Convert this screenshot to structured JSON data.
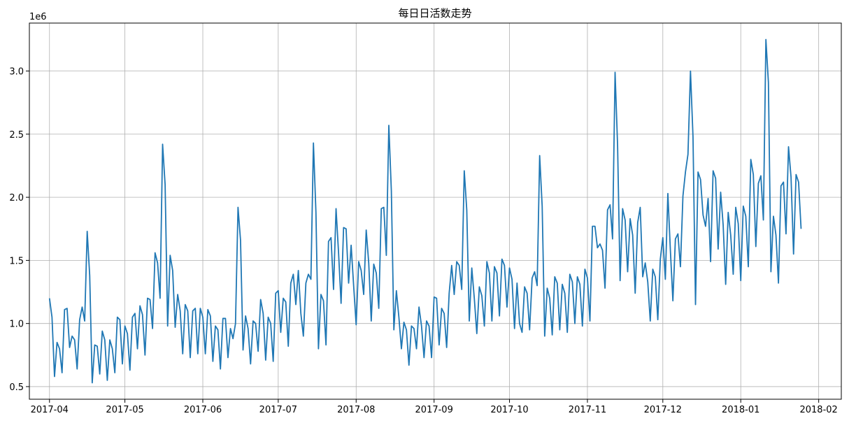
{
  "chart_data": {
    "type": "line",
    "title": "每日日活数走势",
    "xlabel": "",
    "ylabel": "",
    "y_offset_text": "1e6",
    "xlim": [
      "2017-03-24",
      "2018-02-10"
    ],
    "ylim": [
      0.4,
      3.38
    ],
    "grid": true,
    "x_start_date": "2017-04-01",
    "x_tick_labels": [
      "2017-04",
      "2017-05",
      "2017-06",
      "2017-07",
      "2017-08",
      "2017-09",
      "2017-10",
      "2017-11",
      "2017-12",
      "2018-01",
      "2018-02"
    ],
    "x_tick_dates": [
      "2017-04-01",
      "2017-05-01",
      "2017-06-01",
      "2017-07-01",
      "2017-08-01",
      "2017-09-01",
      "2017-10-01",
      "2017-11-01",
      "2017-12-01",
      "2018-01-01",
      "2018-02-01"
    ],
    "y_tick_labels": [
      "0.5",
      "1.0",
      "1.5",
      "2.0",
      "2.5",
      "3.0"
    ],
    "y_tick_values": [
      0.5,
      1.0,
      1.5,
      2.0,
      2.5,
      3.0
    ],
    "line_color": "#1f77b4",
    "series": [
      {
        "name": "",
        "values": [
          1.2,
          1.05,
          0.58,
          0.85,
          0.8,
          0.61,
          1.11,
          1.12,
          0.81,
          0.9,
          0.87,
          0.64,
          1.03,
          1.13,
          1.02,
          1.73,
          1.38,
          0.53,
          0.83,
          0.82,
          0.6,
          0.94,
          0.87,
          0.55,
          0.87,
          0.8,
          0.61,
          1.05,
          1.03,
          0.68,
          0.98,
          0.92,
          0.63,
          1.05,
          1.08,
          0.8,
          1.14,
          1.07,
          0.75,
          1.2,
          1.19,
          0.96,
          1.56,
          1.48,
          1.2,
          2.42,
          2.1,
          0.98,
          1.54,
          1.42,
          0.97,
          1.23,
          1.1,
          0.76,
          1.15,
          1.1,
          0.73,
          1.1,
          1.12,
          0.76,
          1.12,
          1.05,
          0.76,
          1.11,
          1.06,
          0.7,
          0.98,
          0.95,
          0.64,
          1.04,
          1.04,
          0.73,
          0.96,
          0.88,
          1.0,
          1.92,
          1.66,
          0.79,
          1.06,
          0.96,
          0.68,
          1.02,
          1.0,
          0.78,
          1.19,
          1.08,
          0.71,
          1.05,
          1.0,
          0.7,
          1.24,
          1.26,
          0.93,
          1.2,
          1.17,
          0.82,
          1.32,
          1.39,
          1.15,
          1.42,
          1.08,
          0.9,
          1.32,
          1.39,
          1.35,
          2.43,
          1.88,
          0.8,
          1.23,
          1.18,
          0.83,
          1.65,
          1.68,
          1.27,
          1.91,
          1.56,
          1.16,
          1.76,
          1.75,
          1.32,
          1.62,
          1.3,
          0.99,
          1.49,
          1.42,
          1.23,
          1.74,
          1.48,
          1.02,
          1.47,
          1.4,
          1.12,
          1.91,
          1.92,
          1.54,
          2.57,
          2.05,
          0.95,
          1.26,
          1.05,
          0.8,
          1.01,
          0.95,
          0.67,
          0.98,
          0.96,
          0.8,
          1.13,
          0.98,
          0.73,
          1.02,
          0.98,
          0.73,
          1.21,
          1.2,
          0.83,
          1.12,
          1.08,
          0.81,
          1.24,
          1.46,
          1.23,
          1.49,
          1.46,
          1.27,
          2.21,
          1.9,
          1.02,
          1.44,
          1.2,
          0.92,
          1.29,
          1.22,
          0.98,
          1.49,
          1.4,
          1.02,
          1.45,
          1.4,
          1.06,
          1.51,
          1.46,
          1.13,
          1.44,
          1.35,
          0.96,
          1.32,
          1.0,
          0.93,
          1.29,
          1.24,
          0.95,
          1.36,
          1.41,
          1.3,
          2.33,
          1.93,
          0.9,
          1.28,
          1.2,
          0.91,
          1.37,
          1.32,
          0.95,
          1.31,
          1.24,
          0.93,
          1.39,
          1.33,
          1.0,
          1.37,
          1.31,
          0.98,
          1.43,
          1.36,
          1.02,
          1.77,
          1.77,
          1.6,
          1.63,
          1.58,
          1.28,
          1.9,
          1.94,
          1.67,
          2.99,
          2.41,
          1.34,
          1.91,
          1.82,
          1.41,
          1.83,
          1.7,
          1.24,
          1.8,
          1.92,
          1.37,
          1.48,
          1.33,
          1.02,
          1.43,
          1.37,
          1.03,
          1.51,
          1.68,
          1.35,
          2.03,
          1.58,
          1.18,
          1.67,
          1.71,
          1.45,
          2.01,
          2.2,
          2.34,
          3.0,
          2.48,
          1.15,
          2.2,
          2.14,
          1.86,
          1.77,
          1.99,
          1.49,
          2.21,
          2.15,
          1.59,
          2.04,
          1.78,
          1.31,
          1.88,
          1.7,
          1.39,
          1.92,
          1.79,
          1.34,
          1.93,
          1.85,
          1.45,
          2.3,
          2.18,
          1.61,
          2.11,
          2.17,
          1.82,
          3.25,
          2.91,
          1.41,
          1.85,
          1.7,
          1.32,
          2.09,
          2.12,
          1.71,
          2.4,
          2.16,
          1.55,
          2.18,
          2.12,
          1.75
        ]
      }
    ]
  }
}
